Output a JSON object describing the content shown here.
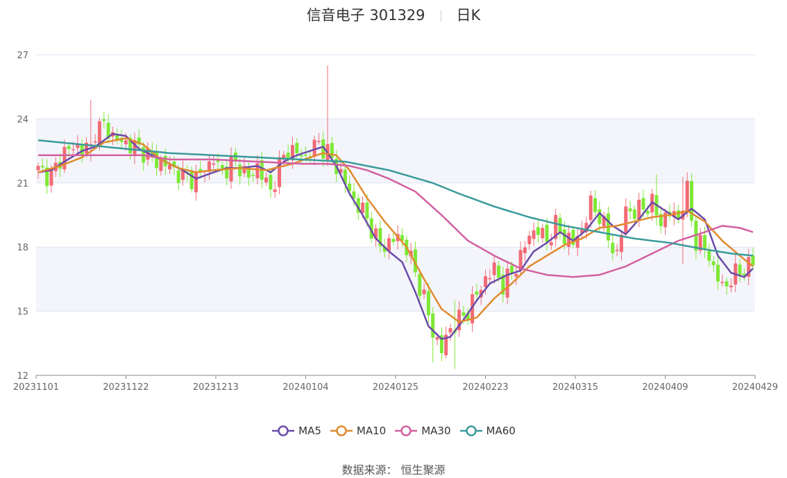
{
  "title": {
    "name": "信音电子 301329",
    "period": "日K"
  },
  "source": {
    "label": "数据来源：",
    "value": "恒生聚源"
  },
  "chart_data": {
    "type": "candlestick",
    "y_ticks": [
      "27",
      "24",
      "21",
      "18",
      "15",
      "12"
    ],
    "ylim": [
      12,
      27
    ],
    "x_ticks": [
      "20231101",
      "20231122",
      "20231213",
      "20240104",
      "20240125",
      "20240223",
      "20240315",
      "20240409",
      "20240429"
    ],
    "grid": "horizontal",
    "legend_position": "bottom",
    "colors": {
      "up": "#f26b76",
      "down": "#7ee836",
      "band": "#f3f5fb",
      "grid": "#dde3f0",
      "axis": "#888888"
    },
    "series": [
      {
        "name": "MA5",
        "color": "#6b4aa8",
        "anchors": [
          [
            0,
            21.5
          ],
          [
            3,
            21.6
          ],
          [
            6,
            22.0
          ],
          [
            10,
            22.5
          ],
          [
            13,
            22.7
          ],
          [
            17,
            23.3
          ],
          [
            20,
            23.2
          ],
          [
            23,
            22.6
          ],
          [
            26,
            22.3
          ],
          [
            30,
            21.9
          ],
          [
            33,
            21.6
          ],
          [
            36,
            21.2
          ],
          [
            40,
            21.5
          ],
          [
            43,
            21.7
          ],
          [
            46,
            21.7
          ],
          [
            50,
            21.8
          ],
          [
            53,
            21.5
          ],
          [
            56,
            22.0
          ],
          [
            59,
            22.3
          ],
          [
            62,
            22.5
          ],
          [
            65,
            22.7
          ],
          [
            68,
            21.8
          ],
          [
            71,
            20.5
          ],
          [
            74,
            19.5
          ],
          [
            77,
            18.4
          ],
          [
            80,
            17.8
          ],
          [
            83,
            17.3
          ],
          [
            86,
            15.9
          ],
          [
            89,
            14.3
          ],
          [
            92,
            13.7
          ],
          [
            94,
            13.8
          ],
          [
            97,
            14.6
          ],
          [
            100,
            15.5
          ],
          [
            103,
            16.3
          ],
          [
            107,
            16.7
          ],
          [
            110,
            16.9
          ],
          [
            113,
            17.8
          ],
          [
            116,
            18.2
          ],
          [
            119,
            18.7
          ],
          [
            122,
            18.3
          ],
          [
            125,
            18.8
          ],
          [
            128,
            19.6
          ],
          [
            131,
            19.0
          ],
          [
            134,
            18.6
          ],
          [
            137,
            19.3
          ],
          [
            140,
            20.1
          ],
          [
            143,
            19.7
          ],
          [
            146,
            19.3
          ],
          [
            149,
            19.8
          ],
          [
            152,
            19.3
          ],
          [
            155,
            17.6
          ],
          [
            158,
            16.8
          ],
          [
            161,
            16.6
          ],
          [
            163,
            17.0
          ]
        ]
      },
      {
        "name": "MA10",
        "color": "#e08a2e",
        "anchors": [
          [
            0,
            21.5
          ],
          [
            5,
            21.8
          ],
          [
            10,
            22.2
          ],
          [
            15,
            22.9
          ],
          [
            20,
            23.1
          ],
          [
            24,
            22.8
          ],
          [
            28,
            22.1
          ],
          [
            32,
            21.7
          ],
          [
            36,
            21.5
          ],
          [
            40,
            21.6
          ],
          [
            46,
            21.7
          ],
          [
            52,
            21.6
          ],
          [
            58,
            21.9
          ],
          [
            62,
            22.2
          ],
          [
            65,
            22.4
          ],
          [
            68,
            22.3
          ],
          [
            71,
            21.6
          ],
          [
            75,
            20.3
          ],
          [
            79,
            19.2
          ],
          [
            84,
            18.0
          ],
          [
            88,
            16.5
          ],
          [
            92,
            15.1
          ],
          [
            96,
            14.5
          ],
          [
            100,
            14.7
          ],
          [
            104,
            15.6
          ],
          [
            108,
            16.3
          ],
          [
            112,
            17.1
          ],
          [
            116,
            17.6
          ],
          [
            120,
            18.1
          ],
          [
            124,
            18.4
          ],
          [
            128,
            18.9
          ],
          [
            132,
            19.0
          ],
          [
            136,
            19.2
          ],
          [
            140,
            19.4
          ],
          [
            144,
            19.5
          ],
          [
            148,
            19.7
          ],
          [
            152,
            19.2
          ],
          [
            156,
            18.3
          ],
          [
            160,
            17.6
          ],
          [
            163,
            17.1
          ]
        ]
      },
      {
        "name": "MA30",
        "color": "#d2609f",
        "anchors": [
          [
            0,
            22.3
          ],
          [
            10,
            22.3
          ],
          [
            18,
            22.3
          ],
          [
            24,
            22.3
          ],
          [
            30,
            22.1
          ],
          [
            40,
            22.1
          ],
          [
            50,
            22.0
          ],
          [
            60,
            21.9
          ],
          [
            66,
            21.9
          ],
          [
            71,
            21.8
          ],
          [
            75,
            21.6
          ],
          [
            80,
            21.2
          ],
          [
            86,
            20.6
          ],
          [
            92,
            19.5
          ],
          [
            98,
            18.3
          ],
          [
            104,
            17.6
          ],
          [
            110,
            17.0
          ],
          [
            116,
            16.7
          ],
          [
            122,
            16.6
          ],
          [
            128,
            16.7
          ],
          [
            134,
            17.1
          ],
          [
            140,
            17.7
          ],
          [
            146,
            18.3
          ],
          [
            152,
            18.7
          ],
          [
            156,
            19.0
          ],
          [
            160,
            18.9
          ],
          [
            163,
            18.7
          ]
        ]
      },
      {
        "name": "MA60",
        "color": "#3a9a9a",
        "anchors": [
          [
            0,
            23.0
          ],
          [
            10,
            22.8
          ],
          [
            20,
            22.6
          ],
          [
            30,
            22.4
          ],
          [
            40,
            22.3
          ],
          [
            50,
            22.2
          ],
          [
            60,
            22.1
          ],
          [
            70,
            22.0
          ],
          [
            80,
            21.6
          ],
          [
            90,
            21.0
          ],
          [
            96,
            20.5
          ],
          [
            104,
            19.9
          ],
          [
            112,
            19.4
          ],
          [
            120,
            19.0
          ],
          [
            128,
            18.7
          ],
          [
            136,
            18.4
          ],
          [
            144,
            18.2
          ],
          [
            152,
            17.9
          ],
          [
            158,
            17.7
          ],
          [
            163,
            17.6
          ]
        ]
      }
    ],
    "price_anchors": [
      [
        0,
        21.6
      ],
      [
        3,
        21.3
      ],
      [
        6,
        22.5
      ],
      [
        9,
        22.7
      ],
      [
        12,
        22.6
      ],
      [
        13,
        23.5
      ],
      [
        15,
        23.7
      ],
      [
        17,
        23.2
      ],
      [
        19,
        22.9
      ],
      [
        21,
        22.8
      ],
      [
        24,
        22.5
      ],
      [
        27,
        22.0
      ],
      [
        29,
        21.9
      ],
      [
        31,
        21.6
      ],
      [
        33,
        21.3
      ],
      [
        36,
        21.2
      ],
      [
        38,
        21.6
      ],
      [
        40,
        22.1
      ],
      [
        42,
        21.5
      ],
      [
        44,
        21.9
      ],
      [
        46,
        21.8
      ],
      [
        48,
        21.2
      ],
      [
        50,
        21.8
      ],
      [
        53,
        20.6
      ],
      [
        55,
        21.8
      ],
      [
        57,
        22.6
      ],
      [
        59,
        22.4
      ],
      [
        61,
        22.2
      ],
      [
        63,
        22.7
      ],
      [
        64,
        22.9
      ],
      [
        66,
        22.4
      ],
      [
        68,
        21.8
      ],
      [
        70,
        21.0
      ],
      [
        72,
        20.2
      ],
      [
        74,
        19.7
      ],
      [
        76,
        18.9
      ],
      [
        78,
        18.0
      ],
      [
        80,
        18.2
      ],
      [
        82,
        18.5
      ],
      [
        84,
        18.0
      ],
      [
        86,
        16.8
      ],
      [
        88,
        15.6
      ],
      [
        90,
        14.0
      ],
      [
        92,
        13.2
      ],
      [
        94,
        14.2
      ],
      [
        96,
        14.6
      ],
      [
        98,
        15.0
      ],
      [
        100,
        15.8
      ],
      [
        102,
        16.5
      ],
      [
        104,
        17.0
      ],
      [
        106,
        16.2
      ],
      [
        108,
        16.8
      ],
      [
        110,
        17.5
      ],
      [
        112,
        18.6
      ],
      [
        114,
        18.8
      ],
      [
        116,
        18.3
      ],
      [
        118,
        19.0
      ],
      [
        120,
        18.5
      ],
      [
        122,
        18.2
      ],
      [
        124,
        18.8
      ],
      [
        126,
        20.0
      ],
      [
        128,
        19.5
      ],
      [
        130,
        18.4
      ],
      [
        132,
        17.6
      ],
      [
        134,
        19.8
      ],
      [
        136,
        19.6
      ],
      [
        138,
        19.9
      ],
      [
        140,
        20.0
      ],
      [
        142,
        19.2
      ],
      [
        144,
        19.6
      ],
      [
        146,
        19.4
      ],
      [
        148,
        20.6
      ],
      [
        150,
        18.2
      ],
      [
        152,
        18.0
      ],
      [
        154,
        17.0
      ],
      [
        156,
        16.1
      ],
      [
        158,
        16.5
      ],
      [
        160,
        16.9
      ],
      [
        162,
        17.1
      ],
      [
        163,
        17.3
      ]
    ],
    "spikes": [
      [
        12,
        24.9,
        22.0
      ],
      [
        66,
        26.5,
        22.5
      ],
      [
        141,
        21.4,
        19.0
      ],
      [
        147,
        21.3,
        17.2
      ],
      [
        95,
        15.5,
        12.3
      ],
      [
        90,
        15.0,
        12.6
      ]
    ]
  }
}
